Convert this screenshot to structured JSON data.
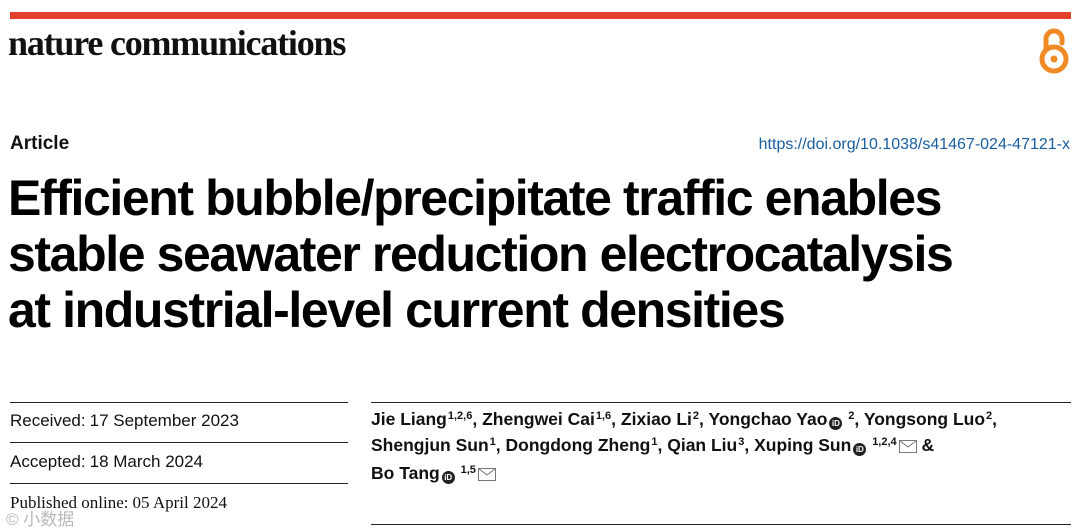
{
  "header": {
    "journal_name": "nature communications",
    "accent_color": "#e2402a",
    "open_access_icon": "open-access-lock-icon"
  },
  "article": {
    "type": "Article",
    "doi_url": "https://doi.org/10.1038/s41467-024-47121-x",
    "title_lines": [
      "Efficient bubble/precipitate traffic enables",
      "stable seawater reduction electrocatalysis",
      "at industrial-level current densities"
    ]
  },
  "dates": {
    "received_label": "Received:",
    "received_value": "17 September 2023",
    "accepted_label": "Accepted:",
    "accepted_value": "18 March 2024",
    "published_label": "Published online:",
    "published_value": "05 April 2024"
  },
  "authors": [
    {
      "name": "Jie Liang",
      "aff": "1,2,6",
      "orcid": false,
      "email": false
    },
    {
      "name": "Zhengwei Cai",
      "aff": "1,6",
      "orcid": false,
      "email": false
    },
    {
      "name": "Zixiao Li",
      "aff": "2",
      "orcid": false,
      "email": false
    },
    {
      "name": "Yongchao Yao",
      "aff": "2",
      "orcid": true,
      "email": false
    },
    {
      "name": "Yongsong Luo",
      "aff": "2",
      "orcid": false,
      "email": false
    },
    {
      "name": "Shengjun Sun",
      "aff": "1",
      "orcid": false,
      "email": false
    },
    {
      "name": "Dongdong Zheng",
      "aff": "1",
      "orcid": false,
      "email": false
    },
    {
      "name": "Qian Liu",
      "aff": "3",
      "orcid": false,
      "email": false
    },
    {
      "name": "Xuping Sun",
      "aff": "1,2,4",
      "orcid": true,
      "email": true
    },
    {
      "name": "Bo Tang",
      "aff": "1,5",
      "orcid": true,
      "email": true
    }
  ],
  "author_separators": [
    ",",
    ",",
    ",",
    ",",
    ",",
    ",",
    ",",
    ",",
    "&",
    ""
  ],
  "orcid_glyph": "iD",
  "watermark": "© 小数据"
}
